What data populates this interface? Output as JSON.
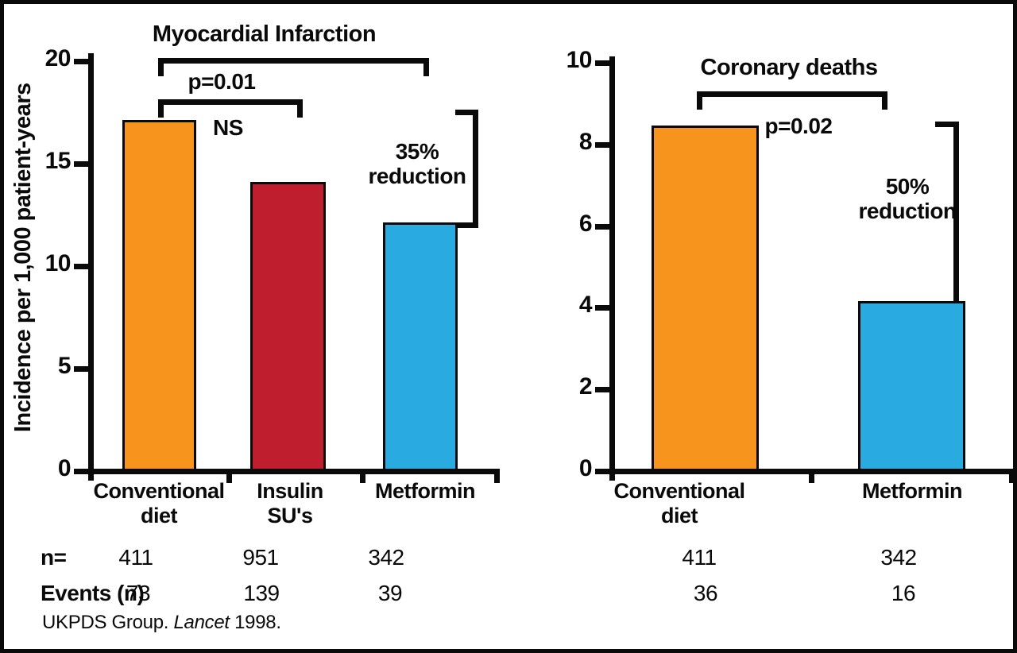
{
  "colors": {
    "ink": "#0a0a0a",
    "orange": "#F7941E",
    "red": "#BE1E2D",
    "blue": "#29ABE2",
    "background": "#ffffff"
  },
  "left_chart": {
    "title": "Myocardial Infarction",
    "ylabel": "Incidence per 1,000 patient-years"
  },
  "right_chart": {
    "title": "Coronary deaths"
  },
  "annotations": {
    "left": {
      "p_label": "p=0.01",
      "ns_label": "NS",
      "reduction_label": "35% reduction"
    },
    "right": {
      "p_label": "p=0.02",
      "reduction_label": "50% reduction"
    }
  },
  "table": {
    "n_label": "n=",
    "events_label": "Events (n)",
    "left_n": [
      "411",
      "951",
      "342"
    ],
    "left_events": [
      "73",
      "139",
      "39"
    ],
    "right_n": [
      "411",
      "342"
    ],
    "right_events": [
      "36",
      "16"
    ]
  },
  "source": {
    "prefix": "UKPDS Group. ",
    "journal": "Lancet",
    "suffix": " 1998."
  },
  "chart_data": [
    {
      "type": "bar",
      "title": "Myocardial Infarction",
      "ylabel": "Incidence per 1,000 patient-years",
      "xlabel": "",
      "categories": [
        "Conventional\ndiet",
        "Insulin\nSU's",
        "Metformin"
      ],
      "values": [
        17,
        14,
        12
      ],
      "bar_colors": [
        "#F7941E",
        "#BE1E2D",
        "#29ABE2"
      ],
      "ylim": [
        0,
        20
      ],
      "yticks": [
        0,
        5,
        10,
        15,
        20
      ],
      "grid": false,
      "n": [
        411,
        951,
        342
      ],
      "events": [
        73,
        139,
        39
      ],
      "annotations": [
        {
          "type": "bracket",
          "between": [
            "Conventional diet",
            "Metformin"
          ],
          "label": "p=0.01"
        },
        {
          "type": "bracket",
          "between": [
            "Conventional diet",
            "Insulin SU's"
          ],
          "label": "NS"
        },
        {
          "type": "side-bracket",
          "label": "35% reduction"
        }
      ]
    },
    {
      "type": "bar",
      "title": "Coronary deaths",
      "ylabel": "",
      "xlabel": "",
      "categories": [
        "Conventional\ndiet",
        "Metformin"
      ],
      "values": [
        8.4,
        4.1
      ],
      "bar_colors": [
        "#F7941E",
        "#29ABE2"
      ],
      "ylim": [
        0,
        10
      ],
      "yticks": [
        0,
        2,
        4,
        6,
        8,
        10
      ],
      "grid": false,
      "n": [
        411,
        342
      ],
      "events": [
        36,
        16
      ],
      "annotations": [
        {
          "type": "bracket",
          "between": [
            "Conventional diet",
            "Metformin"
          ],
          "label": "p=0.02"
        },
        {
          "type": "side-bracket",
          "label": "50% reduction"
        }
      ]
    }
  ]
}
